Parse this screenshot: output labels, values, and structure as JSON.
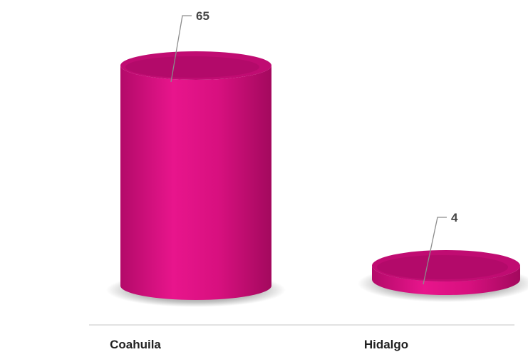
{
  "chart_data": {
    "type": "bar",
    "style": "3d-cylinder",
    "categories": [
      "Coahuila",
      "Hidalgo"
    ],
    "values": [
      65,
      4
    ],
    "data_labels": [
      "65",
      "4"
    ],
    "title": "",
    "xlabel": "",
    "ylabel": "",
    "ylim": [
      0,
      65
    ],
    "grid": false,
    "legend": "none",
    "colors": {
      "bar": "#d40f7d",
      "bar_dark": "#9a0a5b",
      "bar_top": "#c00c72",
      "baseline": "#d9d9d9",
      "leader_line": "#8c8c8c"
    }
  }
}
